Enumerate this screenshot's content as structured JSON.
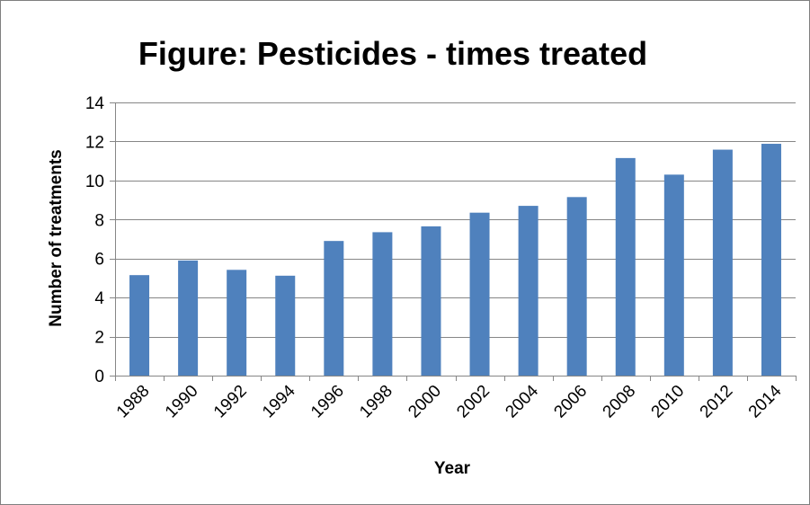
{
  "chart_data": {
    "type": "bar",
    "title": "Figure: Pesticides - times treated",
    "xlabel": "Year",
    "ylabel": "Number of treatments",
    "categories": [
      "1988",
      "1990",
      "1992",
      "1994",
      "1996",
      "1998",
      "2000",
      "2002",
      "2004",
      "2006",
      "2008",
      "2010",
      "2012",
      "2014"
    ],
    "values": [
      5.15,
      5.9,
      5.42,
      5.12,
      6.9,
      7.35,
      7.65,
      8.35,
      8.7,
      9.15,
      11.15,
      10.3,
      11.58,
      11.88
    ],
    "ylim": [
      0,
      14
    ],
    "yticks": [
      0,
      2,
      4,
      6,
      8,
      10,
      12,
      14
    ],
    "grid": true,
    "legend": "none",
    "bar_color": "#4F81BD"
  }
}
